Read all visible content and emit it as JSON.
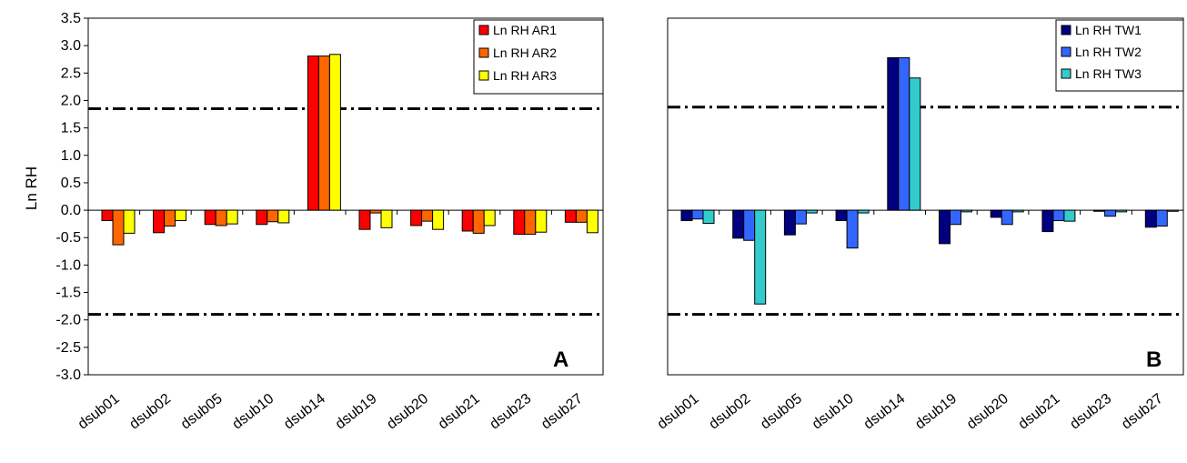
{
  "ylabel": "Ln RH",
  "chart_data": [
    {
      "type": "bar",
      "panel_label": "A",
      "ylabel": "Ln RH",
      "ylim": [
        -3.0,
        3.5
      ],
      "yticks": [
        3.5,
        3.0,
        2.5,
        2.0,
        1.5,
        1.0,
        0.5,
        0.0,
        -0.5,
        -1.0,
        -1.5,
        -2.0,
        -2.5,
        -3.0
      ],
      "yticks_text": [
        "3.5",
        "3.0",
        "2.5",
        "2.0",
        "1.5",
        "1.0",
        "0.5",
        "0.0",
        "-0.5",
        "-1.0",
        "-1.5",
        "-2.0",
        "-2.5",
        "-3.0"
      ],
      "categories": [
        "dsub01",
        "dsub02",
        "dsub05",
        "dsub10",
        "dsub14",
        "dsub19",
        "dsub20",
        "dsub21",
        "dsub23",
        "dsub27"
      ],
      "series": [
        {
          "name": "Ln RH AR1",
          "color": "#ff0000",
          "values": [
            -0.19,
            -0.41,
            -0.26,
            -0.26,
            2.81,
            -0.35,
            -0.28,
            -0.38,
            -0.44,
            -0.22
          ]
        },
        {
          "name": "Ln RH AR2",
          "color": "#ff6600",
          "values": [
            -0.63,
            -0.29,
            -0.28,
            -0.21,
            2.81,
            -0.05,
            -0.2,
            -0.42,
            -0.44,
            -0.22
          ]
        },
        {
          "name": "Ln RH AR3",
          "color": "#ffff00",
          "values": [
            -0.42,
            -0.19,
            -0.25,
            -0.23,
            2.84,
            -0.32,
            -0.35,
            -0.28,
            -0.4,
            -0.41
          ]
        }
      ],
      "reference_lines": [
        1.85,
        -1.9
      ],
      "legend_position": "top-right",
      "grid": false
    },
    {
      "type": "bar",
      "panel_label": "B",
      "ylim": [
        -3.0,
        3.5
      ],
      "categories": [
        "dsub01",
        "dsub02",
        "dsub05",
        "dsub10",
        "dsub14",
        "dsub19",
        "dsub20",
        "dsub21",
        "dsub23",
        "dsub27"
      ],
      "series": [
        {
          "name": "Ln RH TW1",
          "color": "#000080",
          "values": [
            -0.19,
            -0.51,
            -0.45,
            -0.19,
            2.78,
            -0.61,
            -0.13,
            -0.39,
            -0.02,
            -0.31
          ]
        },
        {
          "name": "Ln RH TW2",
          "color": "#3366ff",
          "values": [
            -0.16,
            -0.55,
            -0.25,
            -0.69,
            2.78,
            -0.26,
            -0.26,
            -0.19,
            -0.11,
            -0.29
          ]
        },
        {
          "name": "Ln RH TW3",
          "color": "#33cccc",
          "values": [
            -0.24,
            -1.71,
            -0.05,
            -0.05,
            2.41,
            -0.03,
            -0.03,
            -0.2,
            -0.03,
            -0.02
          ]
        }
      ],
      "reference_lines": [
        1.88,
        -1.9
      ],
      "legend_position": "top-right",
      "grid": false
    }
  ]
}
